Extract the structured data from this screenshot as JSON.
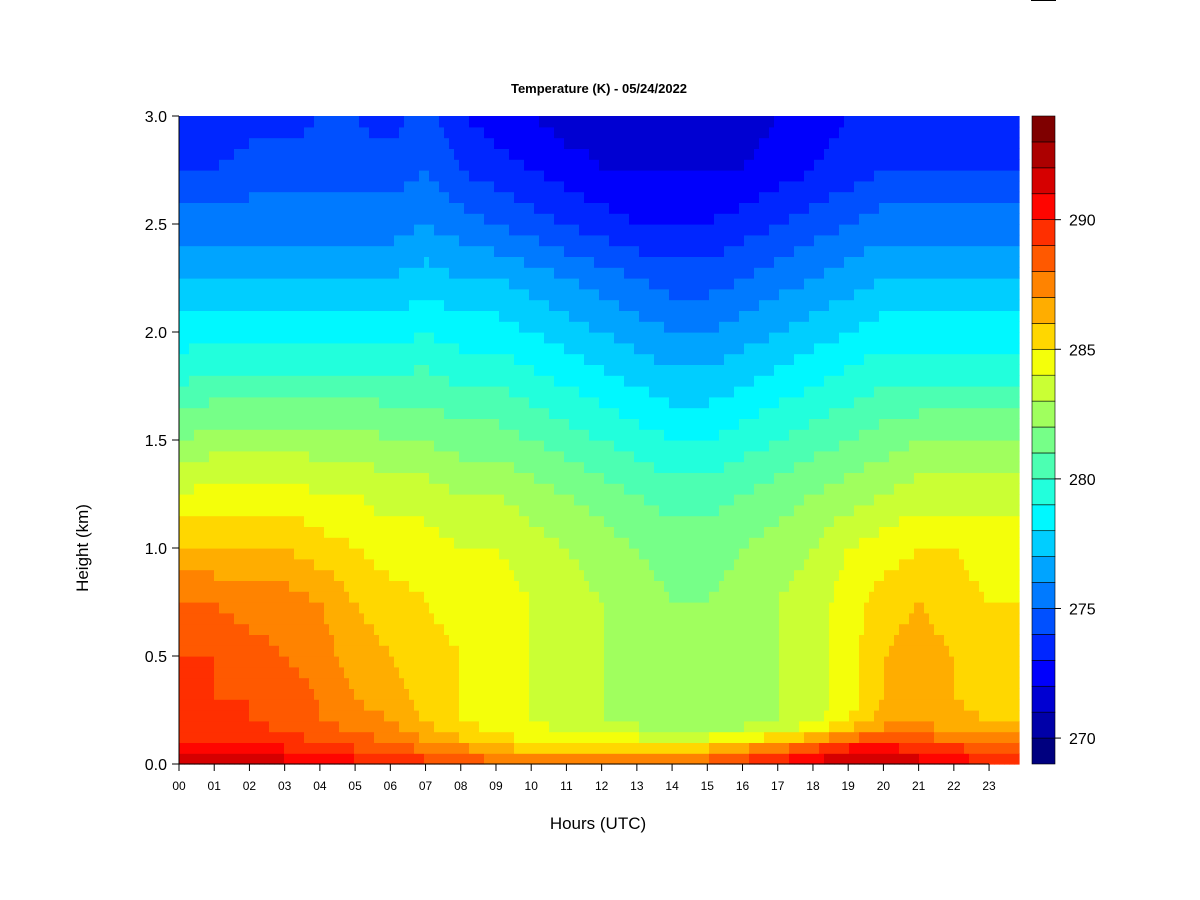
{
  "chart_data": {
    "type": "heatmap",
    "title": "Temperature (K) - 05/24/2022",
    "xlabel": "Hours (UTC)",
    "ylabel": "Height (km)",
    "x_ticks": [
      "00",
      "01",
      "02",
      "03",
      "04",
      "05",
      "06",
      "07",
      "08",
      "09",
      "10",
      "11",
      "12",
      "13",
      "14",
      "15",
      "16",
      "17",
      "18",
      "19",
      "20",
      "21",
      "22",
      "23"
    ],
    "y_ticks": [
      "0.0",
      "0.5",
      "1.0",
      "1.5",
      "2.0",
      "2.5",
      "3.0"
    ],
    "xlim": [
      0,
      23.85
    ],
    "ylim": [
      0,
      3.0
    ],
    "colorbar": {
      "label": "Temperature (K)",
      "range": [
        269,
        294
      ],
      "ticks": [
        "270",
        "275",
        "280",
        "285",
        "290"
      ],
      "levels": 25,
      "colors": [
        "#00007f",
        "#0000a8",
        "#0000d2",
        "#0000fc",
        "#0026ff",
        "#0050ff",
        "#007aff",
        "#00a4ff",
        "#00ceff",
        "#00f8ff",
        "#22ffdc",
        "#4cffb2",
        "#76ff88",
        "#a0ff5e",
        "#caff34",
        "#f4ff0a",
        "#ffd700",
        "#ffad00",
        "#ff8300",
        "#ff5900",
        "#ff2f00",
        "#ff0500",
        "#d60000",
        "#ac0000",
        "#7f0000"
      ]
    },
    "heights_km": [
      0.0,
      0.05,
      0.1,
      0.15,
      0.2,
      0.3,
      0.5,
      0.75,
      1.0,
      1.25,
      1.5,
      1.75,
      2.0,
      2.25,
      2.5,
      2.75,
      3.0
    ],
    "hours": [
      0,
      1,
      2,
      3,
      4,
      5,
      6,
      7,
      8,
      9,
      10,
      11,
      12,
      13,
      14,
      15,
      16,
      17,
      18,
      19,
      20,
      21,
      22,
      23
    ],
    "temperature_K": [
      [
        292.0,
        291.0,
        290.0,
        289.5,
        289.0,
        289.0,
        289.0,
        288.0,
        286.0,
        284.0,
        282.0,
        280.0,
        278.5,
        277.0,
        275.5,
        274.0,
        273.0
      ],
      [
        292.0,
        291.0,
        290.0,
        289.5,
        289.0,
        289.0,
        289.0,
        288.0,
        286.0,
        284.5,
        282.5,
        280.5,
        278.5,
        277.0,
        275.5,
        274.0,
        273.0
      ],
      [
        292.0,
        291.0,
        290.0,
        289.5,
        289.0,
        289.0,
        288.5,
        287.5,
        286.0,
        284.5,
        282.5,
        280.5,
        278.5,
        277.0,
        275.5,
        274.5,
        273.5
      ],
      [
        291.5,
        290.5,
        289.5,
        289.0,
        288.5,
        288.5,
        288.0,
        287.5,
        286.0,
        284.5,
        282.5,
        280.5,
        278.5,
        277.0,
        275.5,
        274.5,
        273.5
      ],
      [
        291.0,
        290.0,
        289.0,
        288.5,
        288.0,
        288.0,
        287.5,
        287.0,
        285.5,
        284.0,
        282.5,
        280.5,
        278.5,
        277.0,
        275.5,
        274.5,
        274.0
      ],
      [
        290.5,
        289.5,
        288.5,
        288.0,
        287.5,
        287.0,
        286.5,
        286.0,
        285.0,
        284.0,
        282.5,
        280.5,
        278.5,
        277.0,
        275.5,
        274.5,
        274.0
      ],
      [
        290.0,
        289.0,
        288.0,
        287.5,
        287.0,
        286.5,
        286.0,
        285.5,
        284.5,
        283.5,
        282.0,
        280.5,
        278.5,
        277.0,
        275.5,
        274.5,
        273.5
      ],
      [
        289.5,
        288.5,
        287.0,
        286.5,
        286.0,
        285.5,
        285.5,
        285.0,
        284.5,
        283.5,
        282.0,
        280.5,
        279.0,
        277.5,
        276.0,
        275.0,
        274.5
      ],
      [
        289.0,
        288.0,
        286.5,
        285.5,
        285.0,
        285.0,
        285.0,
        284.5,
        284.0,
        283.0,
        281.5,
        280.0,
        278.5,
        277.0,
        275.5,
        274.0,
        273.0
      ],
      [
        288.5,
        287.0,
        285.5,
        285.0,
        284.5,
        284.5,
        284.5,
        284.5,
        284.0,
        283.0,
        281.5,
        280.0,
        278.5,
        277.0,
        275.0,
        273.5,
        272.5
      ],
      [
        288.0,
        286.5,
        285.0,
        284.5,
        284.0,
        284.0,
        284.0,
        284.0,
        283.5,
        282.5,
        281.0,
        279.5,
        278.0,
        276.5,
        274.5,
        273.0,
        272.0
      ],
      [
        288.0,
        286.5,
        285.0,
        284.0,
        283.5,
        283.5,
        283.5,
        283.5,
        283.0,
        282.0,
        280.5,
        279.0,
        277.5,
        276.0,
        274.0,
        272.5,
        271.5
      ],
      [
        288.0,
        286.5,
        284.5,
        283.5,
        283.0,
        283.0,
        283.0,
        283.0,
        282.5,
        281.5,
        280.0,
        278.5,
        277.0,
        275.5,
        273.5,
        272.0,
        271.5
      ],
      [
        288.0,
        286.5,
        284.5,
        283.5,
        282.5,
        282.5,
        282.5,
        282.5,
        282.0,
        281.0,
        279.5,
        278.0,
        276.5,
        275.0,
        273.0,
        272.0,
        271.5
      ],
      [
        288.5,
        286.5,
        284.5,
        283.0,
        282.0,
        282.0,
        282.0,
        282.0,
        281.5,
        280.5,
        279.0,
        277.5,
        276.0,
        274.5,
        273.0,
        272.0,
        271.5
      ],
      [
        289.0,
        287.0,
        285.0,
        283.0,
        282.0,
        282.0,
        282.0,
        282.0,
        281.5,
        280.5,
        279.0,
        277.5,
        276.0,
        274.5,
        273.0,
        272.0,
        271.5
      ],
      [
        289.5,
        288.0,
        285.5,
        283.5,
        282.5,
        282.5,
        282.5,
        282.5,
        282.0,
        281.0,
        279.5,
        278.0,
        276.5,
        275.0,
        273.5,
        272.0,
        271.5
      ],
      [
        290.5,
        289.0,
        286.5,
        284.0,
        283.0,
        283.0,
        283.0,
        283.0,
        282.5,
        281.5,
        280.0,
        278.5,
        277.0,
        275.5,
        274.0,
        272.5,
        272.0
      ],
      [
        291.5,
        290.0,
        287.5,
        285.0,
        283.5,
        283.5,
        283.5,
        283.5,
        283.0,
        282.0,
        280.5,
        279.0,
        277.5,
        276.0,
        274.5,
        273.0,
        272.5
      ],
      [
        292.0,
        291.0,
        289.0,
        286.5,
        285.0,
        284.5,
        284.5,
        284.5,
        284.0,
        282.5,
        281.0,
        279.5,
        278.0,
        276.5,
        275.0,
        273.5,
        273.0
      ],
      [
        292.0,
        291.0,
        289.5,
        287.5,
        286.5,
        286.0,
        286.0,
        285.5,
        284.5,
        283.0,
        281.5,
        280.0,
        278.5,
        277.0,
        275.5,
        274.0,
        273.5
      ],
      [
        291.5,
        290.5,
        289.0,
        287.5,
        287.0,
        286.5,
        286.5,
        286.0,
        285.0,
        283.5,
        282.0,
        280.0,
        278.5,
        277.0,
        275.5,
        274.0,
        273.5
      ],
      [
        291.0,
        290.0,
        288.5,
        287.0,
        286.5,
        286.0,
        286.0,
        285.5,
        285.0,
        283.5,
        282.0,
        280.0,
        278.5,
        277.0,
        275.5,
        274.0,
        273.5
      ],
      [
        290.0,
        289.0,
        287.5,
        286.5,
        286.0,
        285.5,
        285.5,
        285.0,
        284.5,
        283.5,
        282.0,
        280.0,
        278.5,
        277.0,
        275.5,
        274.0,
        273.5
      ]
    ]
  }
}
